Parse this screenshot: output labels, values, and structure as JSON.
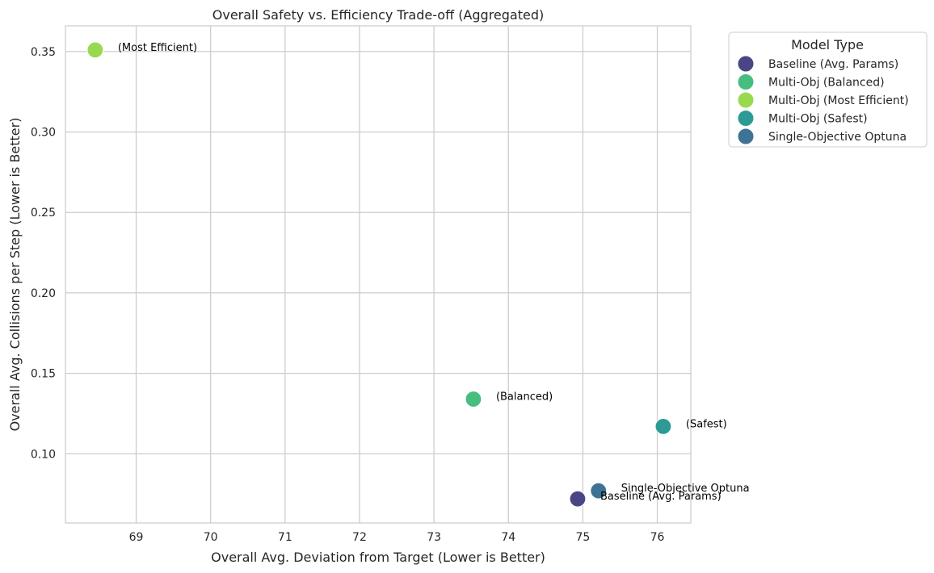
{
  "chart_data": {
    "type": "scatter",
    "title": "Overall Safety vs. Efficiency Trade-off (Aggregated)",
    "xlabel": "Overall Avg. Deviation from Target (Lower is Better)",
    "ylabel": "Overall Avg. Collisions per Step (Lower is Better)",
    "xlim": [
      68.05,
      76.45
    ],
    "ylim": [
      0.057,
      0.366
    ],
    "x_ticks": [
      69,
      70,
      71,
      72,
      73,
      74,
      75,
      76
    ],
    "y_ticks": [
      0.1,
      0.15,
      0.2,
      0.25,
      0.3,
      0.35
    ],
    "grid": true,
    "legend_title": "Model Type",
    "legend_position": "outside-top-right",
    "points": [
      {
        "series": "Baseline (Avg. Params)",
        "x": 74.93,
        "y": 0.072,
        "color": "#4a4585",
        "annotation": "Baseline (Avg. Params)"
      },
      {
        "series": "Multi-Obj (Balanced)",
        "x": 73.53,
        "y": 0.134,
        "color": "#45be80",
        "annotation": "(Balanced)"
      },
      {
        "series": "Multi-Obj (Most Efficient)",
        "x": 68.45,
        "y": 0.351,
        "color": "#99d94f",
        "annotation": "(Most Efficient)"
      },
      {
        "series": "Multi-Obj (Safest)",
        "x": 76.08,
        "y": 0.117,
        "color": "#2e9a96",
        "annotation": "(Safest)"
      },
      {
        "series": "Single-Objective Optuna",
        "x": 75.21,
        "y": 0.077,
        "color": "#3e7396",
        "annotation": "Single-Objective Optuna"
      }
    ]
  }
}
